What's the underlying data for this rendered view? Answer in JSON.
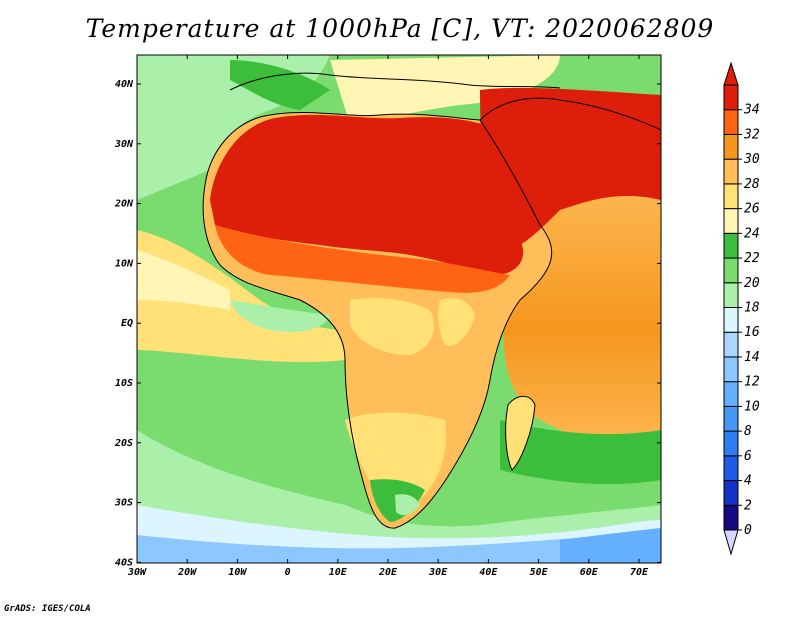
{
  "title": "Temperature at 1000hPa [C], VT: 2020062809",
  "credit": "GrADS: IGES/COLA",
  "lat_labels": [
    "40N",
    "30N",
    "20N",
    "10N",
    "EQ",
    "10S",
    "20S",
    "30S",
    "40S"
  ],
  "lon_labels": [
    "30W",
    "20W",
    "10W",
    "0",
    "10E",
    "20E",
    "30E",
    "40E",
    "50E",
    "60E",
    "70E"
  ],
  "colorbar": {
    "levels": [
      "0",
      "2",
      "4",
      "6",
      "8",
      "10",
      "12",
      "14",
      "16",
      "18",
      "20",
      "22",
      "24",
      "26",
      "28",
      "30",
      "32",
      "34"
    ],
    "colors": [
      "#140a80",
      "#1432c8",
      "#1e5ae6",
      "#2d7df0",
      "#4696f5",
      "#64afff",
      "#8cc8ff",
      "#aad7ff",
      "#dcf5ff",
      "#aaf0aa",
      "#7adc6e",
      "#3cbe3c",
      "#fff5b4",
      "#ffe178",
      "#ffbe5a",
      "#f5961e",
      "#ff6414",
      "#dc1e0a"
    ],
    "below_color": "#d6d6ff",
    "above_color": "#dc1e0a"
  },
  "colors": {
    "ocean_south": "#8cc8ff",
    "ocean_atlantic": "#3cbe3c",
    "ocean_indian": "#f5961e",
    "sahara": "#dc1e0a",
    "savanna": "#ffbe5a",
    "coast_line": "#000000"
  }
}
